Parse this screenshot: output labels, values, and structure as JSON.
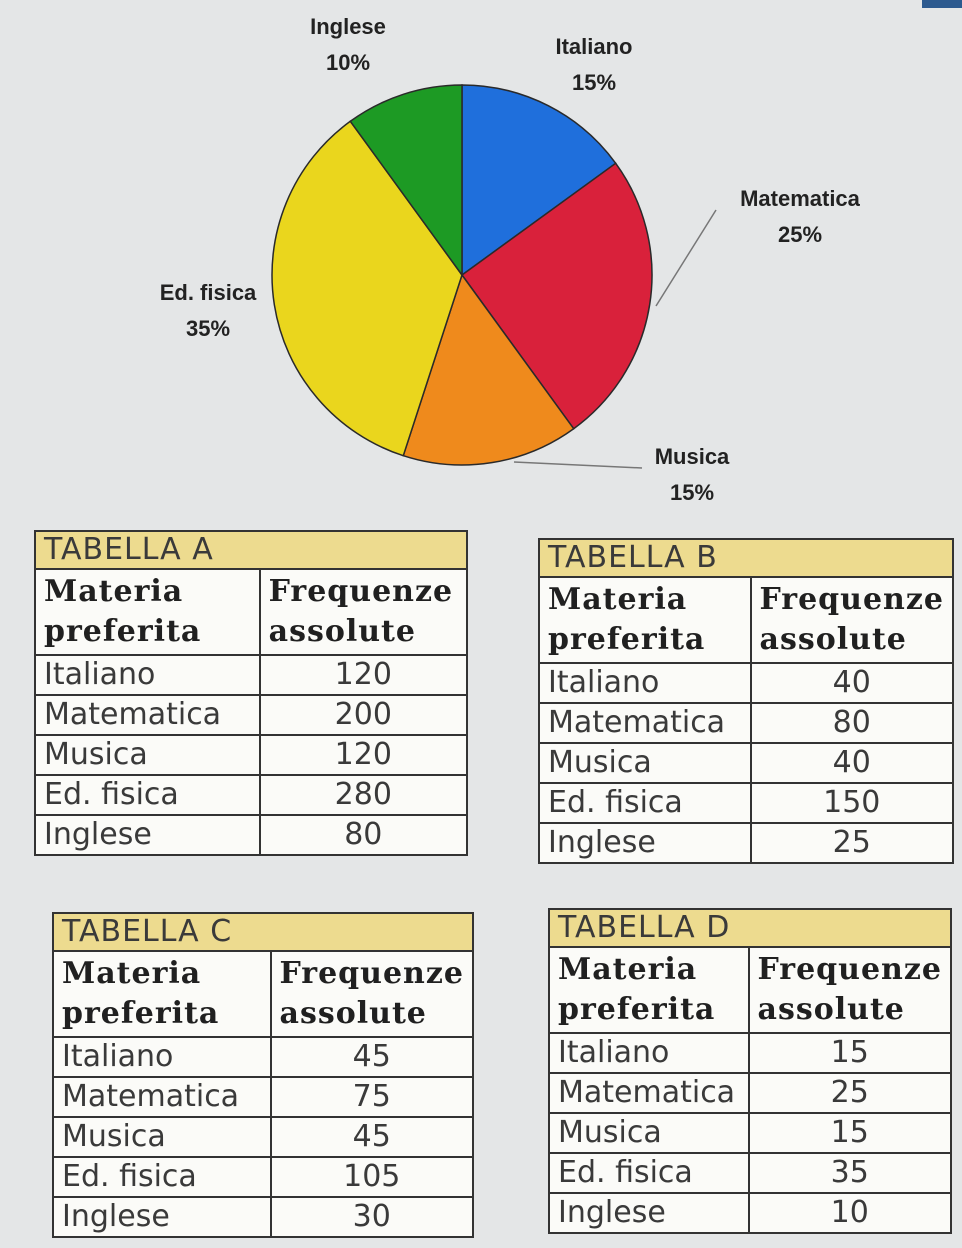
{
  "chart_data": {
    "type": "pie",
    "title": "",
    "slices": [
      {
        "label": "Italiano",
        "value": 15,
        "display": "15%",
        "color": "#1f6fdc"
      },
      {
        "label": "Matematica",
        "value": 25,
        "display": "25%",
        "color": "#d9213b"
      },
      {
        "label": "Musica",
        "value": 15,
        "display": "15%",
        "color": "#ef8a1c"
      },
      {
        "label": "Ed. fisica",
        "value": 35,
        "display": "35%",
        "color": "#ead61d"
      },
      {
        "label": "Inglese",
        "value": 10,
        "display": "10%",
        "color": "#1d9a24"
      }
    ]
  },
  "tables": [
    {
      "caption": "TABELLA A",
      "headers": [
        "Materia preferita",
        "Frequenze assolute"
      ],
      "rows": [
        [
          "Italiano",
          "120"
        ],
        [
          "Matematica",
          "200"
        ],
        [
          "Musica",
          "120"
        ],
        [
          "Ed. fisica",
          "280"
        ],
        [
          "Inglese",
          "80"
        ]
      ]
    },
    {
      "caption": "TABELLA B",
      "headers": [
        "Materia preferita",
        "Frequenze assolute"
      ],
      "rows": [
        [
          "Italiano",
          "40"
        ],
        [
          "Matematica",
          "80"
        ],
        [
          "Musica",
          "40"
        ],
        [
          "Ed. fisica",
          "150"
        ],
        [
          "Inglese",
          "25"
        ]
      ]
    },
    {
      "caption": "TABELLA C",
      "headers": [
        "Materia preferita",
        "Frequenze assolute"
      ],
      "rows": [
        [
          "Italiano",
          "45"
        ],
        [
          "Matematica",
          "75"
        ],
        [
          "Musica",
          "45"
        ],
        [
          "Ed. fisica",
          "105"
        ],
        [
          "Inglese",
          "30"
        ]
      ]
    },
    {
      "caption": "TABELLA D",
      "headers": [
        "Materia preferita",
        "Frequenze assolute"
      ],
      "rows": [
        [
          "Italiano",
          "15"
        ],
        [
          "Matematica",
          "25"
        ],
        [
          "Musica",
          "15"
        ],
        [
          "Ed. fisica",
          "35"
        ],
        [
          "Inglese",
          "10"
        ]
      ]
    }
  ]
}
